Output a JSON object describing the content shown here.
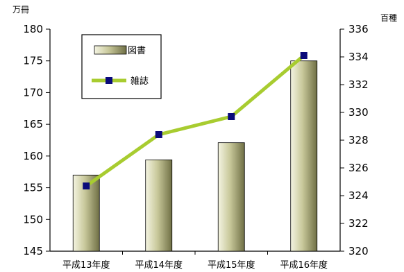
{
  "chart_data": {
    "type": "bar+line",
    "categories": [
      "平成13年度",
      "平成14年度",
      "平成15年度",
      "平成16年度"
    ],
    "series": [
      {
        "name": "図書",
        "type": "bar",
        "axis": "left",
        "values": [
          157.0,
          159.4,
          162.1,
          175.0
        ]
      },
      {
        "name": "雑誌",
        "type": "line",
        "axis": "right",
        "values": [
          324.7,
          328.4,
          329.7,
          334.1
        ]
      }
    ],
    "y_left": {
      "unit": "万冊",
      "min": 145,
      "max": 180,
      "step": 5,
      "ticks": [
        "145",
        "150",
        "155",
        "160",
        "165",
        "170",
        "175",
        "180"
      ]
    },
    "y_right": {
      "unit": "百種",
      "min": 320,
      "max": 336,
      "step": 2,
      "ticks": [
        "320",
        "322",
        "324",
        "326",
        "328",
        "330",
        "332",
        "334",
        "336"
      ]
    },
    "legend": {
      "position": "top-left",
      "bar_label": "図書",
      "line_label": "雑誌"
    },
    "grid": false,
    "colors": {
      "bar_light": "#f4f4e2",
      "bar_mid": "#c8c89a",
      "bar_dark": "#6f6f45",
      "line": "#a8cc30",
      "marker": "#0a0a7a"
    }
  }
}
